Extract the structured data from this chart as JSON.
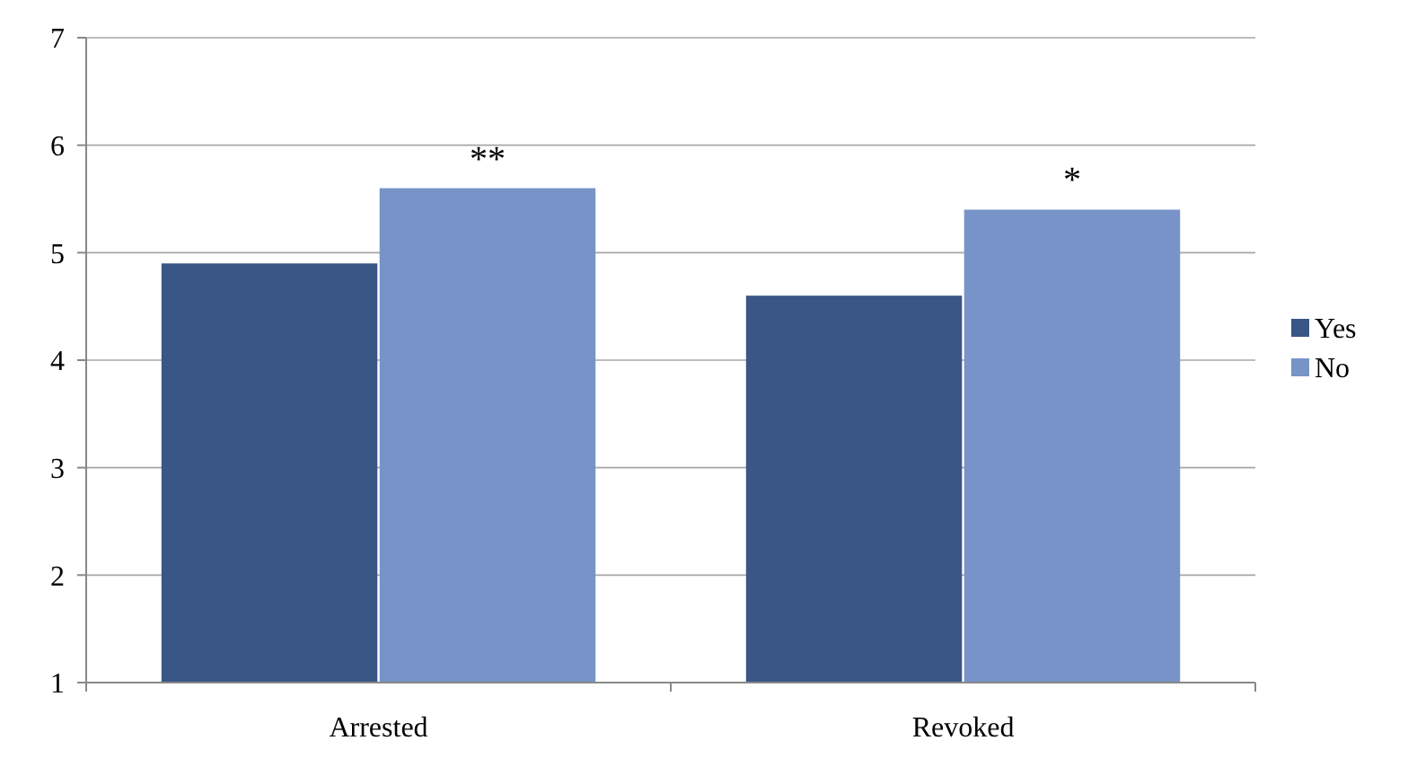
{
  "chart_data": {
    "type": "bar",
    "categories": [
      "Arrested",
      "Revoked"
    ],
    "series": [
      {
        "name": "Yes",
        "color": "#3a5687",
        "values": [
          4.9,
          4.6
        ]
      },
      {
        "name": "No",
        "color": "#7793c8",
        "values": [
          5.6,
          5.4
        ]
      }
    ],
    "ylim": [
      1,
      7
    ],
    "yticks": [
      1,
      2,
      3,
      4,
      5,
      6,
      7
    ],
    "grid": "y",
    "legend": "right",
    "annotations": [
      {
        "text": "**",
        "x": "Arrested",
        "y": 5.6
      },
      {
        "text": "*",
        "x": "Revoked",
        "y": 5.4
      }
    ]
  }
}
